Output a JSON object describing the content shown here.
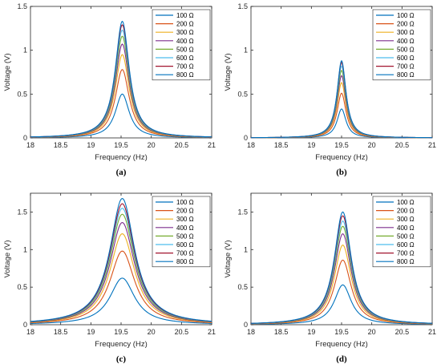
{
  "figure": {
    "panels": [
      {
        "label": "(a)"
      },
      {
        "label": "(b)"
      },
      {
        "label": "(c)"
      },
      {
        "label": "(d)"
      }
    ]
  },
  "chart_data": [
    {
      "type": "line",
      "panel": "(a)",
      "xlabel": "Frequency (Hz)",
      "ylabel": "Voltage (V)",
      "xlim": [
        18,
        21
      ],
      "ylim": [
        0,
        1.5
      ],
      "xticks": [
        "18",
        "18.5",
        "19",
        "19.5",
        "20",
        "20.5",
        "21"
      ],
      "yticks": [
        "0",
        "0.5",
        "1",
        "1.5"
      ],
      "legend_position": "top-right",
      "grid": false,
      "peak_frequency": 19.52,
      "curve_half_width": 0.14,
      "series": [
        {
          "name": "100 Ω",
          "color": "#0072BD",
          "peak": 0.5
        },
        {
          "name": "200 Ω",
          "color": "#D95319",
          "peak": 0.78
        },
        {
          "name": "300 Ω",
          "color": "#EDB120",
          "peak": 0.95
        },
        {
          "name": "400 Ω",
          "color": "#7E2F8E",
          "peak": 1.07
        },
        {
          "name": "500 Ω",
          "color": "#77AC30",
          "peak": 1.16
        },
        {
          "name": "600 Ω",
          "color": "#4DBEEE",
          "peak": 1.23
        },
        {
          "name": "700 Ω",
          "color": "#A2142F",
          "peak": 1.29
        },
        {
          "name": "800 Ω",
          "color": "#0072BD",
          "peak": 1.33
        }
      ]
    },
    {
      "type": "line",
      "panel": "(b)",
      "xlabel": "Frequency (Hz)",
      "ylabel": "Voltage (V)",
      "xlim": [
        18,
        21
      ],
      "ylim": [
        0,
        1.5
      ],
      "xticks": [
        "18",
        "18.5",
        "19",
        "19.5",
        "20",
        "20.5",
        "21"
      ],
      "yticks": [
        "0",
        "0.5",
        "1",
        "1.5"
      ],
      "legend_position": "top-right",
      "grid": false,
      "peak_frequency": 19.5,
      "curve_half_width": 0.09,
      "series": [
        {
          "name": "100 Ω",
          "color": "#0072BD",
          "peak": 0.33
        },
        {
          "name": "200 Ω",
          "color": "#D95319",
          "peak": 0.51
        },
        {
          "name": "300 Ω",
          "color": "#EDB120",
          "peak": 0.63
        },
        {
          "name": "400 Ω",
          "color": "#7E2F8E",
          "peak": 0.71
        },
        {
          "name": "500 Ω",
          "color": "#77AC30",
          "peak": 0.77
        },
        {
          "name": "600 Ω",
          "color": "#4DBEEE",
          "peak": 0.82
        },
        {
          "name": "700 Ω",
          "color": "#A2142F",
          "peak": 0.86
        },
        {
          "name": "800 Ω",
          "color": "#0072BD",
          "peak": 0.88
        }
      ]
    },
    {
      "type": "line",
      "panel": "(c)",
      "xlabel": "Frequency (Hz)",
      "ylabel": "Voltage (V)",
      "xlim": [
        18,
        21
      ],
      "ylim": [
        0,
        1.75
      ],
      "xticks": [
        "18",
        "18.5",
        "19",
        "19.5",
        "20",
        "20.5",
        "21"
      ],
      "yticks": [
        "0",
        "0.5",
        "1",
        "1.5"
      ],
      "legend_position": "top-right",
      "grid": false,
      "peak_frequency": 19.52,
      "curve_half_width": 0.25,
      "series": [
        {
          "name": "100 Ω",
          "color": "#0072BD",
          "peak": 0.62
        },
        {
          "name": "200 Ω",
          "color": "#D95319",
          "peak": 0.98
        },
        {
          "name": "300 Ω",
          "color": "#EDB120",
          "peak": 1.21
        },
        {
          "name": "400 Ω",
          "color": "#7E2F8E",
          "peak": 1.36
        },
        {
          "name": "500 Ω",
          "color": "#77AC30",
          "peak": 1.47
        },
        {
          "name": "600 Ω",
          "color": "#4DBEEE",
          "peak": 1.55
        },
        {
          "name": "700 Ω",
          "color": "#A2142F",
          "peak": 1.61
        },
        {
          "name": "800 Ω",
          "color": "#0072BD",
          "peak": 1.68
        }
      ]
    },
    {
      "type": "line",
      "panel": "(d)",
      "xlabel": "Frequency (Hz)",
      "ylabel": "Voltage (V)",
      "xlim": [
        18,
        21
      ],
      "ylim": [
        0,
        1.75
      ],
      "xticks": [
        "18",
        "18.5",
        "19",
        "19.5",
        "20",
        "20.5",
        "21"
      ],
      "yticks": [
        "0",
        "0.5",
        "1",
        "1.5"
      ],
      "legend_position": "top-right",
      "grid": false,
      "peak_frequency": 19.52,
      "curve_half_width": 0.17,
      "series": [
        {
          "name": "100 Ω",
          "color": "#0072BD",
          "peak": 0.53
        },
        {
          "name": "200 Ω",
          "color": "#D95319",
          "peak": 0.86
        },
        {
          "name": "300 Ω",
          "color": "#EDB120",
          "peak": 1.06
        },
        {
          "name": "400 Ω",
          "color": "#7E2F8E",
          "peak": 1.21
        },
        {
          "name": "500 Ω",
          "color": "#77AC30",
          "peak": 1.31
        },
        {
          "name": "600 Ω",
          "color": "#4DBEEE",
          "peak": 1.38
        },
        {
          "name": "700 Ω",
          "color": "#A2142F",
          "peak": 1.45
        },
        {
          "name": "800 Ω",
          "color": "#0072BD",
          "peak": 1.5
        }
      ]
    }
  ]
}
